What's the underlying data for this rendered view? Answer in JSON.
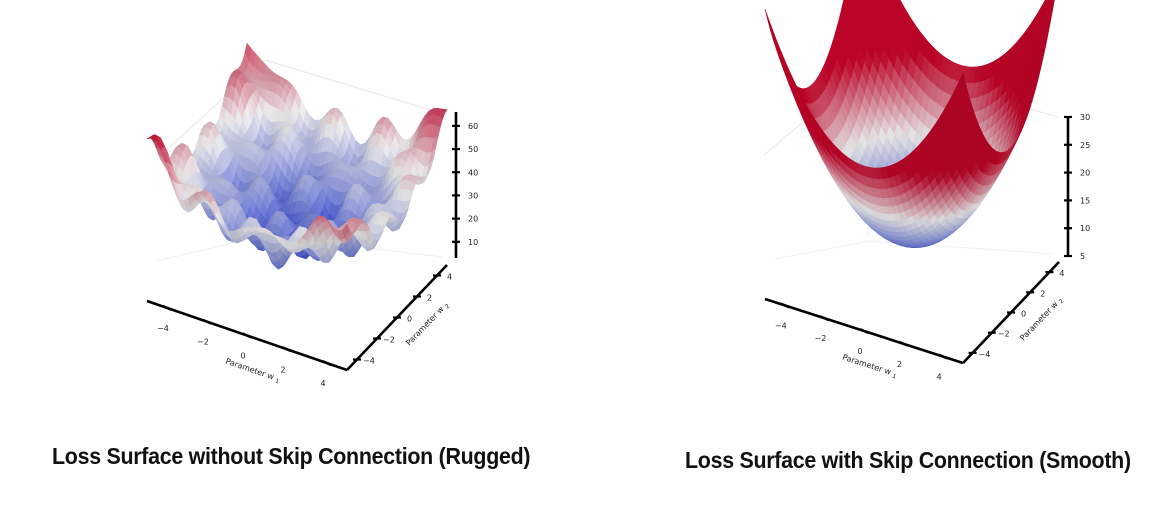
{
  "chart_data": [
    {
      "type": "surface",
      "surface": "rugged",
      "xlabel": "Parameter w",
      "xlabel_sub": "1",
      "ylabel": "Parameter w",
      "ylabel_sub": "2",
      "x_ticks": [
        -4,
        -2,
        0,
        2,
        4
      ],
      "y_ticks": [
        -4,
        -2,
        0,
        2,
        4
      ],
      "z_ticks": [
        10,
        20,
        30,
        40,
        50,
        60
      ],
      "xlim": [
        -5,
        5
      ],
      "ylim": [
        -5,
        5
      ],
      "zlim": [
        3,
        66
      ],
      "colormap": [
        "#3b4cc0",
        "#dddddd",
        "#b40426"
      ],
      "caption": "Loss Surface without Skip Connection (Rugged)"
    },
    {
      "type": "surface",
      "surface": "smooth",
      "xlabel": "Parameter w",
      "xlabel_sub": "1",
      "ylabel": "Parameter w",
      "ylabel_sub": "2",
      "x_ticks": [
        -4,
        -2,
        0,
        2,
        4
      ],
      "y_ticks": [
        -4,
        -2,
        0,
        2,
        4
      ],
      "z_ticks": [
        5,
        10,
        15,
        20,
        25,
        30
      ],
      "xlim": [
        -5,
        5
      ],
      "ylim": [
        -5,
        5
      ],
      "zlim": [
        5,
        30
      ],
      "colormap": [
        "#3b4cc0",
        "#dddddd",
        "#b40426"
      ],
      "caption": "Loss Surface with Skip Connection (Smooth)"
    }
  ]
}
